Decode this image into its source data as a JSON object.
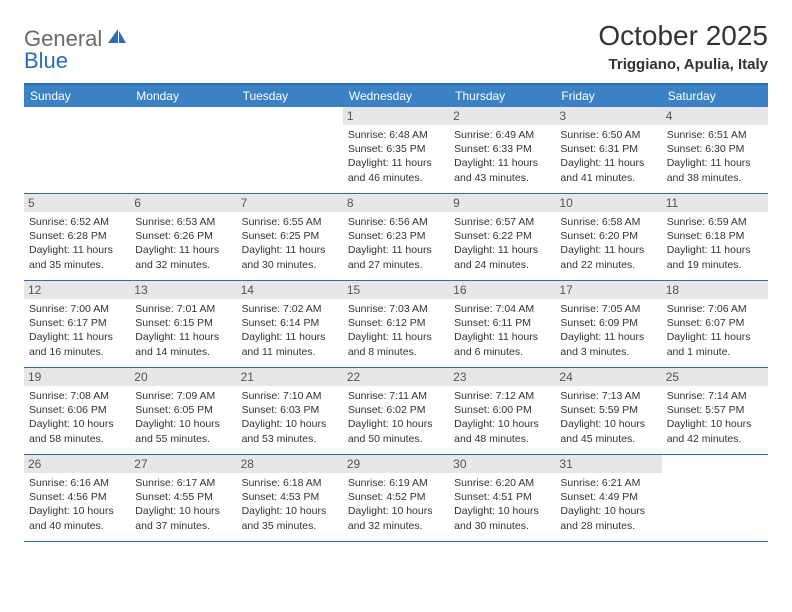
{
  "brand": {
    "part1": "General",
    "part2": "Blue"
  },
  "title": "October 2025",
  "subtitle": "Triggiano, Apulia, Italy",
  "colors": {
    "header_bar": "#3b82c4",
    "rule": "#2a6db5",
    "daynum_bg": "#e7e7e7",
    "text": "#333333",
    "logo_gray": "#6a6a6a",
    "logo_blue": "#2a6db5",
    "background": "#ffffff"
  },
  "dow": [
    "Sunday",
    "Monday",
    "Tuesday",
    "Wednesday",
    "Thursday",
    "Friday",
    "Saturday"
  ],
  "weeks": [
    [
      {
        "n": "",
        "sr": "",
        "ss": "",
        "dl": ""
      },
      {
        "n": "",
        "sr": "",
        "ss": "",
        "dl": ""
      },
      {
        "n": "",
        "sr": "",
        "ss": "",
        "dl": ""
      },
      {
        "n": "1",
        "sr": "Sunrise: 6:48 AM",
        "ss": "Sunset: 6:35 PM",
        "dl": "Daylight: 11 hours and 46 minutes."
      },
      {
        "n": "2",
        "sr": "Sunrise: 6:49 AM",
        "ss": "Sunset: 6:33 PM",
        "dl": "Daylight: 11 hours and 43 minutes."
      },
      {
        "n": "3",
        "sr": "Sunrise: 6:50 AM",
        "ss": "Sunset: 6:31 PM",
        "dl": "Daylight: 11 hours and 41 minutes."
      },
      {
        "n": "4",
        "sr": "Sunrise: 6:51 AM",
        "ss": "Sunset: 6:30 PM",
        "dl": "Daylight: 11 hours and 38 minutes."
      }
    ],
    [
      {
        "n": "5",
        "sr": "Sunrise: 6:52 AM",
        "ss": "Sunset: 6:28 PM",
        "dl": "Daylight: 11 hours and 35 minutes."
      },
      {
        "n": "6",
        "sr": "Sunrise: 6:53 AM",
        "ss": "Sunset: 6:26 PM",
        "dl": "Daylight: 11 hours and 32 minutes."
      },
      {
        "n": "7",
        "sr": "Sunrise: 6:55 AM",
        "ss": "Sunset: 6:25 PM",
        "dl": "Daylight: 11 hours and 30 minutes."
      },
      {
        "n": "8",
        "sr": "Sunrise: 6:56 AM",
        "ss": "Sunset: 6:23 PM",
        "dl": "Daylight: 11 hours and 27 minutes."
      },
      {
        "n": "9",
        "sr": "Sunrise: 6:57 AM",
        "ss": "Sunset: 6:22 PM",
        "dl": "Daylight: 11 hours and 24 minutes."
      },
      {
        "n": "10",
        "sr": "Sunrise: 6:58 AM",
        "ss": "Sunset: 6:20 PM",
        "dl": "Daylight: 11 hours and 22 minutes."
      },
      {
        "n": "11",
        "sr": "Sunrise: 6:59 AM",
        "ss": "Sunset: 6:18 PM",
        "dl": "Daylight: 11 hours and 19 minutes."
      }
    ],
    [
      {
        "n": "12",
        "sr": "Sunrise: 7:00 AM",
        "ss": "Sunset: 6:17 PM",
        "dl": "Daylight: 11 hours and 16 minutes."
      },
      {
        "n": "13",
        "sr": "Sunrise: 7:01 AM",
        "ss": "Sunset: 6:15 PM",
        "dl": "Daylight: 11 hours and 14 minutes."
      },
      {
        "n": "14",
        "sr": "Sunrise: 7:02 AM",
        "ss": "Sunset: 6:14 PM",
        "dl": "Daylight: 11 hours and 11 minutes."
      },
      {
        "n": "15",
        "sr": "Sunrise: 7:03 AM",
        "ss": "Sunset: 6:12 PM",
        "dl": "Daylight: 11 hours and 8 minutes."
      },
      {
        "n": "16",
        "sr": "Sunrise: 7:04 AM",
        "ss": "Sunset: 6:11 PM",
        "dl": "Daylight: 11 hours and 6 minutes."
      },
      {
        "n": "17",
        "sr": "Sunrise: 7:05 AM",
        "ss": "Sunset: 6:09 PM",
        "dl": "Daylight: 11 hours and 3 minutes."
      },
      {
        "n": "18",
        "sr": "Sunrise: 7:06 AM",
        "ss": "Sunset: 6:07 PM",
        "dl": "Daylight: 11 hours and 1 minute."
      }
    ],
    [
      {
        "n": "19",
        "sr": "Sunrise: 7:08 AM",
        "ss": "Sunset: 6:06 PM",
        "dl": "Daylight: 10 hours and 58 minutes."
      },
      {
        "n": "20",
        "sr": "Sunrise: 7:09 AM",
        "ss": "Sunset: 6:05 PM",
        "dl": "Daylight: 10 hours and 55 minutes."
      },
      {
        "n": "21",
        "sr": "Sunrise: 7:10 AM",
        "ss": "Sunset: 6:03 PM",
        "dl": "Daylight: 10 hours and 53 minutes."
      },
      {
        "n": "22",
        "sr": "Sunrise: 7:11 AM",
        "ss": "Sunset: 6:02 PM",
        "dl": "Daylight: 10 hours and 50 minutes."
      },
      {
        "n": "23",
        "sr": "Sunrise: 7:12 AM",
        "ss": "Sunset: 6:00 PM",
        "dl": "Daylight: 10 hours and 48 minutes."
      },
      {
        "n": "24",
        "sr": "Sunrise: 7:13 AM",
        "ss": "Sunset: 5:59 PM",
        "dl": "Daylight: 10 hours and 45 minutes."
      },
      {
        "n": "25",
        "sr": "Sunrise: 7:14 AM",
        "ss": "Sunset: 5:57 PM",
        "dl": "Daylight: 10 hours and 42 minutes."
      }
    ],
    [
      {
        "n": "26",
        "sr": "Sunrise: 6:16 AM",
        "ss": "Sunset: 4:56 PM",
        "dl": "Daylight: 10 hours and 40 minutes."
      },
      {
        "n": "27",
        "sr": "Sunrise: 6:17 AM",
        "ss": "Sunset: 4:55 PM",
        "dl": "Daylight: 10 hours and 37 minutes."
      },
      {
        "n": "28",
        "sr": "Sunrise: 6:18 AM",
        "ss": "Sunset: 4:53 PM",
        "dl": "Daylight: 10 hours and 35 minutes."
      },
      {
        "n": "29",
        "sr": "Sunrise: 6:19 AM",
        "ss": "Sunset: 4:52 PM",
        "dl": "Daylight: 10 hours and 32 minutes."
      },
      {
        "n": "30",
        "sr": "Sunrise: 6:20 AM",
        "ss": "Sunset: 4:51 PM",
        "dl": "Daylight: 10 hours and 30 minutes."
      },
      {
        "n": "31",
        "sr": "Sunrise: 6:21 AM",
        "ss": "Sunset: 4:49 PM",
        "dl": "Daylight: 10 hours and 28 minutes."
      },
      {
        "n": "",
        "sr": "",
        "ss": "",
        "dl": ""
      }
    ]
  ]
}
